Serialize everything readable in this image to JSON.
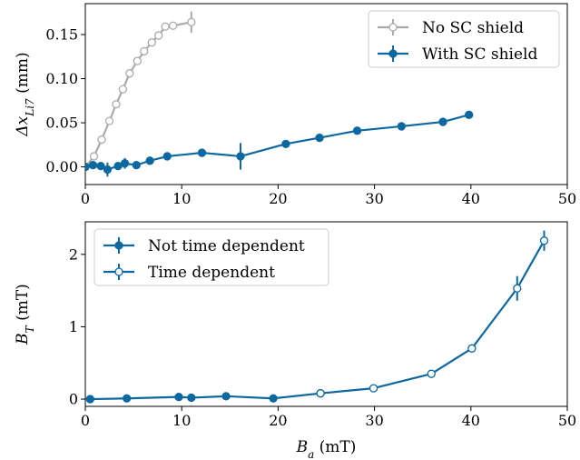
{
  "chart_data": [
    {
      "type": "line",
      "xlabel": "",
      "ylabel_main": "Δx",
      "ylabel_sub": "Li7",
      "ylabel_unit": " (mm)",
      "xlim": [
        0,
        50
      ],
      "ylim": [
        -0.02,
        0.185
      ],
      "xticks": [
        "0",
        "10",
        "20",
        "30",
        "40",
        "50"
      ],
      "xtick_values": [
        0,
        10,
        20,
        30,
        40,
        50
      ],
      "yticks": [
        "0.00",
        "0.05",
        "0.10",
        "0.15"
      ],
      "ytick_values": [
        0,
        0.05,
        0.1,
        0.15
      ],
      "grid": false,
      "legend_position": "top-right",
      "series": [
        {
          "name": "No SC shield",
          "color": "#aaaaaa",
          "marker": "open-circle",
          "x": [
            0,
            0.9,
            1.7,
            2.5,
            3.2,
            3.9,
            4.6,
            5.4,
            6.1,
            6.9,
            7.6,
            8.3,
            9.1,
            11.0
          ],
          "y": [
            0.0,
            0.012,
            0.031,
            0.052,
            0.071,
            0.088,
            0.106,
            0.12,
            0.131,
            0.141,
            0.149,
            0.159,
            0.16,
            0.164
          ],
          "err": [
            0,
            0,
            0,
            0,
            0,
            0,
            0,
            0,
            0,
            0,
            0,
            0,
            0,
            0.012
          ]
        },
        {
          "name": "With SC shield",
          "color": "#0d68a0",
          "marker": "filled-circle",
          "x": [
            0,
            0.8,
            1.6,
            2.3,
            3.4,
            4.1,
            5.3,
            6.7,
            8.5,
            12.1,
            16.1,
            20.8,
            24.3,
            28.2,
            32.8,
            37.1,
            39.8
          ],
          "y": [
            0.0,
            0.002,
            0.001,
            -0.003,
            0.001,
            0.004,
            0.002,
            0.007,
            0.012,
            0.016,
            0.012,
            0.026,
            0.033,
            0.041,
            0.046,
            0.051,
            0.059
          ],
          "err": [
            0.004,
            0.004,
            0.004,
            0.008,
            0.004,
            0.006,
            0.004,
            0.004,
            0.003,
            0.004,
            0.015,
            0.004,
            0.003,
            0.003,
            0.004,
            0.004,
            0.004
          ]
        }
      ]
    },
    {
      "type": "line",
      "xlabel_main": "B",
      "xlabel_sub": "a",
      "xlabel_unit": " (mT)",
      "ylabel_main": "B",
      "ylabel_sub": "T",
      "ylabel_unit": " (mT)",
      "xlim": [
        0,
        50
      ],
      "ylim": [
        -0.1,
        2.45
      ],
      "xticks": [
        "0",
        "10",
        "20",
        "30",
        "40",
        "50"
      ],
      "xtick_values": [
        0,
        10,
        20,
        30,
        40,
        50
      ],
      "yticks": [
        "0",
        "1",
        "2"
      ],
      "ytick_values": [
        0,
        1,
        2
      ],
      "grid": false,
      "legend_position": "top-left",
      "series": [
        {
          "name": "Not time dependent",
          "color": "#0d68a0",
          "marker": "filled-circle",
          "x": [
            0.5,
            4.3,
            9.7,
            11.0,
            14.6,
            19.5,
            24.4
          ],
          "y": [
            0.0,
            0.01,
            0.03,
            0.02,
            0.04,
            0.01,
            0.08
          ],
          "err": [
            0,
            0,
            0,
            0,
            0,
            0,
            0
          ]
        },
        {
          "name": "Time dependent",
          "color": "#0d68a0",
          "marker": "open-circle",
          "x": [
            24.4,
            29.9,
            35.9,
            40.1,
            44.8,
            47.6
          ],
          "y": [
            0.08,
            0.15,
            0.35,
            0.7,
            1.53,
            2.19
          ],
          "err": [
            0,
            0,
            0,
            0,
            0.17,
            0.14
          ]
        }
      ]
    }
  ]
}
